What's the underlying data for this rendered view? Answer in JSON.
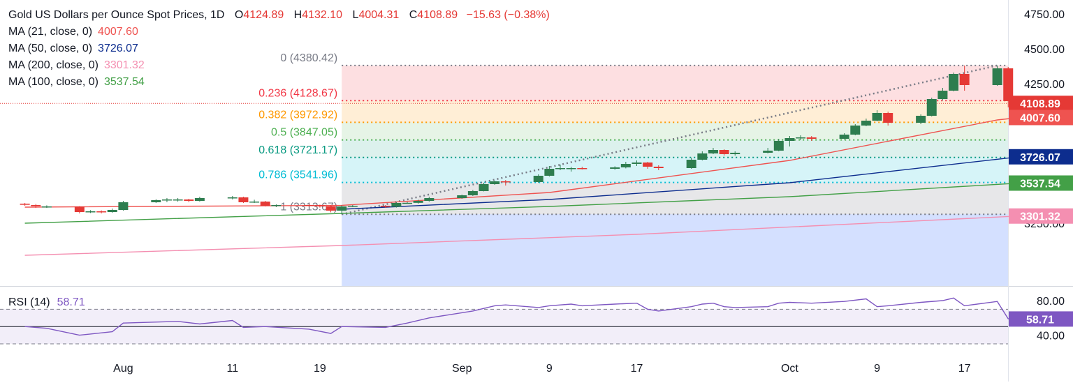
{
  "header": {
    "title": "Gold US Dollars per Ounce Spot Prices, 1D",
    "ohlc": {
      "o_label": "O",
      "o": "4124.89",
      "h_label": "H",
      "h": "4132.10",
      "l_label": "L",
      "l": "4004.31",
      "c_label": "C",
      "c": "4108.89",
      "change": "−15.63 (−0.38%)"
    }
  },
  "indicators": [
    {
      "label": "MA (21, close, 0)",
      "value": "4007.60",
      "color": "#ef5350"
    },
    {
      "label": "MA (50, close, 0)",
      "value": "3726.07",
      "color": "#0d2d8e"
    },
    {
      "label": "MA (200, close, 0)",
      "value": "3301.32",
      "color": "#f48fb1"
    },
    {
      "label": "MA (100, close, 0)",
      "value": "3537.54",
      "color": "#43a047"
    }
  ],
  "rsi": {
    "label": "RSI (14)",
    "value": "58.71",
    "color": "#7e57c2"
  },
  "colors": {
    "up": "#2e7d4f",
    "down": "#e53935",
    "rsi": "#7e57c2"
  },
  "chart_data": {
    "type": "candlestick",
    "y_ticks": [
      "4750.00",
      "4500.00",
      "4250.00",
      "3250.00"
    ],
    "x_ticks": [
      {
        "label": "Aug",
        "date": "2025-08-01"
      },
      {
        "label": "11",
        "date": "2025-08-11"
      },
      {
        "label": "19",
        "date": "2025-08-19"
      },
      {
        "label": "Sep",
        "date": "2025-09-01"
      },
      {
        "label": "9",
        "date": "2025-09-09"
      },
      {
        "label": "17",
        "date": "2025-09-17"
      },
      {
        "label": "Oct",
        "date": "2025-10-01"
      },
      {
        "label": "9",
        "date": "2025-10-09"
      },
      {
        "label": "17",
        "date": "2025-10-17"
      }
    ],
    "candles": [
      {
        "date": "2025-07-23",
        "o": 3390,
        "h": 3395,
        "l": 3375,
        "c": 3382
      },
      {
        "date": "2025-07-24",
        "o": 3380,
        "h": 3388,
        "l": 3360,
        "c": 3372
      },
      {
        "date": "2025-07-25",
        "o": 3368,
        "h": 3378,
        "l": 3360,
        "c": 3370
      },
      {
        "date": "2025-07-28",
        "o": 3370,
        "h": 3372,
        "l": 3320,
        "c": 3330
      },
      {
        "date": "2025-07-29",
        "o": 3330,
        "h": 3343,
        "l": 3323,
        "c": 3335
      },
      {
        "date": "2025-07-30",
        "o": 3335,
        "h": 3342,
        "l": 3320,
        "c": 3330
      },
      {
        "date": "2025-07-31",
        "o": 3330,
        "h": 3355,
        "l": 3325,
        "c": 3345
      },
      {
        "date": "2025-08-01",
        "o": 3345,
        "h": 3410,
        "l": 3340,
        "c": 3400
      },
      {
        "date": "2025-08-04",
        "o": 3400,
        "h": 3422,
        "l": 3395,
        "c": 3415
      },
      {
        "date": "2025-08-05",
        "o": 3415,
        "h": 3430,
        "l": 3400,
        "c": 3420
      },
      {
        "date": "2025-08-06",
        "o": 3420,
        "h": 3430,
        "l": 3405,
        "c": 3420
      },
      {
        "date": "2025-08-07",
        "o": 3420,
        "h": 3425,
        "l": 3400,
        "c": 3410
      },
      {
        "date": "2025-08-08",
        "o": 3410,
        "h": 3440,
        "l": 3405,
        "c": 3430
      },
      {
        "date": "2025-08-11",
        "o": 3430,
        "h": 3445,
        "l": 3420,
        "c": 3435
      },
      {
        "date": "2025-08-12",
        "o": 3435,
        "h": 3440,
        "l": 3395,
        "c": 3400
      },
      {
        "date": "2025-08-13",
        "o": 3400,
        "h": 3418,
        "l": 3395,
        "c": 3405
      },
      {
        "date": "2025-08-14",
        "o": 3405,
        "h": 3410,
        "l": 3370,
        "c": 3375
      },
      {
        "date": "2025-08-15",
        "o": 3375,
        "h": 3385,
        "l": 3365,
        "c": 3380
      },
      {
        "date": "2025-08-18",
        "o": 3380,
        "h": 3387,
        "l": 3370,
        "c": 3378
      },
      {
        "date": "2025-08-19",
        "o": 3378,
        "h": 3383,
        "l": 3362,
        "c": 3372
      },
      {
        "date": "2025-08-20",
        "o": 3372,
        "h": 3378,
        "l": 3328,
        "c": 3340
      },
      {
        "date": "2025-08-21",
        "o": 3340,
        "h": 3378,
        "l": 3313.67,
        "c": 3370
      },
      {
        "date": "2025-08-22",
        "o": 3370,
        "h": 3380,
        "l": 3365,
        "c": 3375
      },
      {
        "date": "2025-08-25",
        "o": 3375,
        "h": 3380,
        "l": 3360,
        "c": 3368
      },
      {
        "date": "2025-08-26",
        "o": 3368,
        "h": 3402,
        "l": 3362,
        "c": 3395
      },
      {
        "date": "2025-08-27",
        "o": 3395,
        "h": 3402,
        "l": 3390,
        "c": 3396
      },
      {
        "date": "2025-08-28",
        "o": 3396,
        "h": 3418,
        "l": 3390,
        "c": 3410
      },
      {
        "date": "2025-08-29",
        "o": 3410,
        "h": 3440,
        "l": 3405,
        "c": 3430
      },
      {
        "date": "2025-09-01",
        "o": 3430,
        "h": 3455,
        "l": 3425,
        "c": 3450
      },
      {
        "date": "2025-09-02",
        "o": 3450,
        "h": 3488,
        "l": 3445,
        "c": 3480
      },
      {
        "date": "2025-09-03",
        "o": 3480,
        "h": 3540,
        "l": 3478,
        "c": 3530
      },
      {
        "date": "2025-09-04",
        "o": 3530,
        "h": 3555,
        "l": 3525,
        "c": 3550
      },
      {
        "date": "2025-09-05",
        "o": 3550,
        "h": 3560,
        "l": 3520,
        "c": 3545
      },
      {
        "date": "2025-09-08",
        "o": 3545,
        "h": 3600,
        "l": 3540,
        "c": 3590
      },
      {
        "date": "2025-09-09",
        "o": 3590,
        "h": 3660,
        "l": 3585,
        "c": 3640
      },
      {
        "date": "2025-09-10",
        "o": 3640,
        "h": 3670,
        "l": 3630,
        "c": 3645
      },
      {
        "date": "2025-09-11",
        "o": 3645,
        "h": 3655,
        "l": 3620,
        "c": 3645
      },
      {
        "date": "2025-09-12",
        "o": 3645,
        "h": 3655,
        "l": 3635,
        "c": 3640
      },
      {
        "date": "2025-09-15",
        "o": 3640,
        "h": 3658,
        "l": 3633,
        "c": 3650
      },
      {
        "date": "2025-09-16",
        "o": 3650,
        "h": 3690,
        "l": 3643,
        "c": 3675
      },
      {
        "date": "2025-09-17",
        "o": 3675,
        "h": 3700,
        "l": 3660,
        "c": 3685
      },
      {
        "date": "2025-09-18",
        "o": 3685,
        "h": 3690,
        "l": 3640,
        "c": 3655
      },
      {
        "date": "2025-09-19",
        "o": 3655,
        "h": 3665,
        "l": 3630,
        "c": 3645
      },
      {
        "date": "2025-09-22",
        "o": 3645,
        "h": 3720,
        "l": 3640,
        "c": 3705
      },
      {
        "date": "2025-09-23",
        "o": 3705,
        "h": 3765,
        "l": 3700,
        "c": 3750
      },
      {
        "date": "2025-09-24",
        "o": 3750,
        "h": 3790,
        "l": 3745,
        "c": 3775
      },
      {
        "date": "2025-09-25",
        "o": 3775,
        "h": 3780,
        "l": 3735,
        "c": 3745
      },
      {
        "date": "2025-09-26",
        "o": 3745,
        "h": 3765,
        "l": 3735,
        "c": 3755
      },
      {
        "date": "2025-09-29",
        "o": 3755,
        "h": 3790,
        "l": 3750,
        "c": 3770
      },
      {
        "date": "2025-09-30",
        "o": 3770,
        "h": 3855,
        "l": 3765,
        "c": 3840
      },
      {
        "date": "2025-10-01",
        "o": 3840,
        "h": 3875,
        "l": 3800,
        "c": 3860
      },
      {
        "date": "2025-10-02",
        "o": 3860,
        "h": 3880,
        "l": 3845,
        "c": 3865
      },
      {
        "date": "2025-10-03",
        "o": 3865,
        "h": 3875,
        "l": 3840,
        "c": 3855
      },
      {
        "date": "2025-10-06",
        "o": 3855,
        "h": 3895,
        "l": 3850,
        "c": 3885
      },
      {
        "date": "2025-10-07",
        "o": 3885,
        "h": 3960,
        "l": 3880,
        "c": 3950
      },
      {
        "date": "2025-10-08",
        "o": 3950,
        "h": 4000,
        "l": 3945,
        "c": 3985
      },
      {
        "date": "2025-10-09",
        "o": 3985,
        "h": 4060,
        "l": 3980,
        "c": 4040
      },
      {
        "date": "2025-10-10",
        "o": 4040,
        "h": 4050,
        "l": 3950,
        "c": 3970
      },
      {
        "date": "2025-10-13",
        "o": 3970,
        "h": 4030,
        "l": 3960,
        "c": 4020
      },
      {
        "date": "2025-10-14",
        "o": 4020,
        "h": 4150,
        "l": 4015,
        "c": 4140
      },
      {
        "date": "2025-10-15",
        "o": 4140,
        "h": 4220,
        "l": 4130,
        "c": 4200
      },
      {
        "date": "2025-10-16",
        "o": 4200,
        "h": 4330,
        "l": 4195,
        "c": 4320
      },
      {
        "date": "2025-10-17",
        "o": 4320,
        "h": 4380.42,
        "l": 4200,
        "c": 4240
      },
      {
        "date": "2025-10-20",
        "o": 4240,
        "h": 4380,
        "l": 4235,
        "c": 4360
      },
      {
        "date": "2025-10-21",
        "o": 4360,
        "h": 4370,
        "l": 4080,
        "c": 4125
      },
      {
        "date": "2025-10-22",
        "o": 4124.89,
        "h": 4132.1,
        "l": 4004.31,
        "c": 4108.89
      }
    ],
    "fibonacci": [
      {
        "ratio": "0",
        "value": 4380.42,
        "label": "0 (4380.42)",
        "color": "#787b86",
        "fill": "rgba(242,54,69,0.16)"
      },
      {
        "ratio": "0.236",
        "value": 4128.67,
        "label": "0.236 (4128.67)",
        "color": "#f23645",
        "fill": "rgba(255,152,0,0.16)"
      },
      {
        "ratio": "0.382",
        "value": 3972.92,
        "label": "0.382 (3972.92)",
        "color": "#ff9800",
        "fill": "rgba(76,175,80,0.14)"
      },
      {
        "ratio": "0.5",
        "value": 3847.05,
        "label": "0.5 (3847.05)",
        "color": "#4caf50",
        "fill": "rgba(8,153,129,0.14)"
      },
      {
        "ratio": "0.618",
        "value": 3721.17,
        "label": "0.618 (3721.17)",
        "color": "#089981",
        "fill": "rgba(0,188,212,0.16)"
      },
      {
        "ratio": "0.786",
        "value": 3541.96,
        "label": "0.786 (3541.96)",
        "color": "#00bcd4",
        "fill": "rgba(120,123,134,0.18)"
      },
      {
        "ratio": "1",
        "value": 3313.67,
        "label": "1 (3313.67)",
        "color": "#787b86",
        "fill": "rgba(41,98,255,0.20)"
      }
    ],
    "fib_anchor": {
      "from_date": "2025-08-21",
      "from_value": 3313.67,
      "to_date": "2025-10-20",
      "to_value": 4380.42
    },
    "price_labels": [
      {
        "value": 4108.89,
        "text": "4108.89",
        "bg": "#e53935"
      },
      {
        "value": 4007.6,
        "text": "4007.60",
        "bg": "#ef5350"
      },
      {
        "value": 3726.07,
        "text": "3726.07",
        "bg": "#0d2d8e"
      },
      {
        "value": 3537.54,
        "text": "3537.54",
        "bg": "#43a047"
      },
      {
        "value": 3301.32,
        "text": "3301.32",
        "bg": "#f48fb1"
      }
    ],
    "rsi_ticks": [
      "80.00",
      "40.00"
    ],
    "rsi_upper": 70,
    "rsi_lower": 30,
    "rsi_mid": 50,
    "rsi_values": [
      {
        "date": "2025-07-23",
        "v": 50
      },
      {
        "date": "2025-07-25",
        "v": 48
      },
      {
        "date": "2025-07-28",
        "v": 40
      },
      {
        "date": "2025-07-31",
        "v": 44
      },
      {
        "date": "2025-08-01",
        "v": 54
      },
      {
        "date": "2025-08-06",
        "v": 56
      },
      {
        "date": "2025-08-08",
        "v": 53
      },
      {
        "date": "2025-08-11",
        "v": 57
      },
      {
        "date": "2025-08-12",
        "v": 49
      },
      {
        "date": "2025-08-14",
        "v": 50
      },
      {
        "date": "2025-08-18",
        "v": 47
      },
      {
        "date": "2025-08-20",
        "v": 42
      },
      {
        "date": "2025-08-21",
        "v": 50
      },
      {
        "date": "2025-08-25",
        "v": 49
      },
      {
        "date": "2025-08-27",
        "v": 54
      },
      {
        "date": "2025-08-29",
        "v": 60
      },
      {
        "date": "2025-09-02",
        "v": 68
      },
      {
        "date": "2025-09-04",
        "v": 74
      },
      {
        "date": "2025-09-05",
        "v": 75
      },
      {
        "date": "2025-09-08",
        "v": 72
      },
      {
        "date": "2025-09-09",
        "v": 74
      },
      {
        "date": "2025-09-11",
        "v": 76
      },
      {
        "date": "2025-09-12",
        "v": 74
      },
      {
        "date": "2025-09-15",
        "v": 76
      },
      {
        "date": "2025-09-17",
        "v": 77
      },
      {
        "date": "2025-09-18",
        "v": 70
      },
      {
        "date": "2025-09-19",
        "v": 68
      },
      {
        "date": "2025-09-22",
        "v": 73
      },
      {
        "date": "2025-09-23",
        "v": 76
      },
      {
        "date": "2025-09-24",
        "v": 77
      },
      {
        "date": "2025-09-25",
        "v": 73
      },
      {
        "date": "2025-09-26",
        "v": 72
      },
      {
        "date": "2025-09-29",
        "v": 73
      },
      {
        "date": "2025-09-30",
        "v": 77
      },
      {
        "date": "2025-10-01",
        "v": 78
      },
      {
        "date": "2025-10-03",
        "v": 77
      },
      {
        "date": "2025-10-06",
        "v": 79
      },
      {
        "date": "2025-10-08",
        "v": 82
      },
      {
        "date": "2025-10-09",
        "v": 73
      },
      {
        "date": "2025-10-10",
        "v": 74
      },
      {
        "date": "2025-10-13",
        "v": 78
      },
      {
        "date": "2025-10-15",
        "v": 80
      },
      {
        "date": "2025-10-16",
        "v": 83
      },
      {
        "date": "2025-10-17",
        "v": 74
      },
      {
        "date": "2025-10-20",
        "v": 79
      },
      {
        "date": "2025-10-21",
        "v": 59
      },
      {
        "date": "2025-10-22",
        "v": 58.71
      }
    ],
    "ma": [
      {
        "name": "MA 21",
        "color": "#ef5350",
        "points": [
          {
            "date": "2025-07-23",
            "v": 3365
          },
          {
            "date": "2025-08-21",
            "v": 3378
          },
          {
            "date": "2025-09-09",
            "v": 3470
          },
          {
            "date": "2025-10-01",
            "v": 3700
          },
          {
            "date": "2025-10-20",
            "v": 3990
          },
          {
            "date": "2025-10-22",
            "v": 4007.6
          }
        ]
      },
      {
        "name": "MA 50",
        "color": "#0d2d8e",
        "points": [
          {
            "date": "2025-08-21",
            "v": 3350
          },
          {
            "date": "2025-09-09",
            "v": 3420
          },
          {
            "date": "2025-10-01",
            "v": 3540
          },
          {
            "date": "2025-10-22",
            "v": 3726.07
          }
        ]
      },
      {
        "name": "MA 100",
        "color": "#43a047",
        "points": [
          {
            "date": "2025-07-23",
            "v": 3250
          },
          {
            "date": "2025-08-21",
            "v": 3320
          },
          {
            "date": "2025-09-09",
            "v": 3370
          },
          {
            "date": "2025-10-01",
            "v": 3440
          },
          {
            "date": "2025-10-22",
            "v": 3537.54
          }
        ]
      },
      {
        "name": "MA 200",
        "color": "#f48fb1",
        "points": [
          {
            "date": "2025-07-23",
            "v": 3020
          },
          {
            "date": "2025-08-21",
            "v": 3090
          },
          {
            "date": "2025-09-17",
            "v": 3170
          },
          {
            "date": "2025-10-22",
            "v": 3301.32
          }
        ]
      }
    ]
  }
}
